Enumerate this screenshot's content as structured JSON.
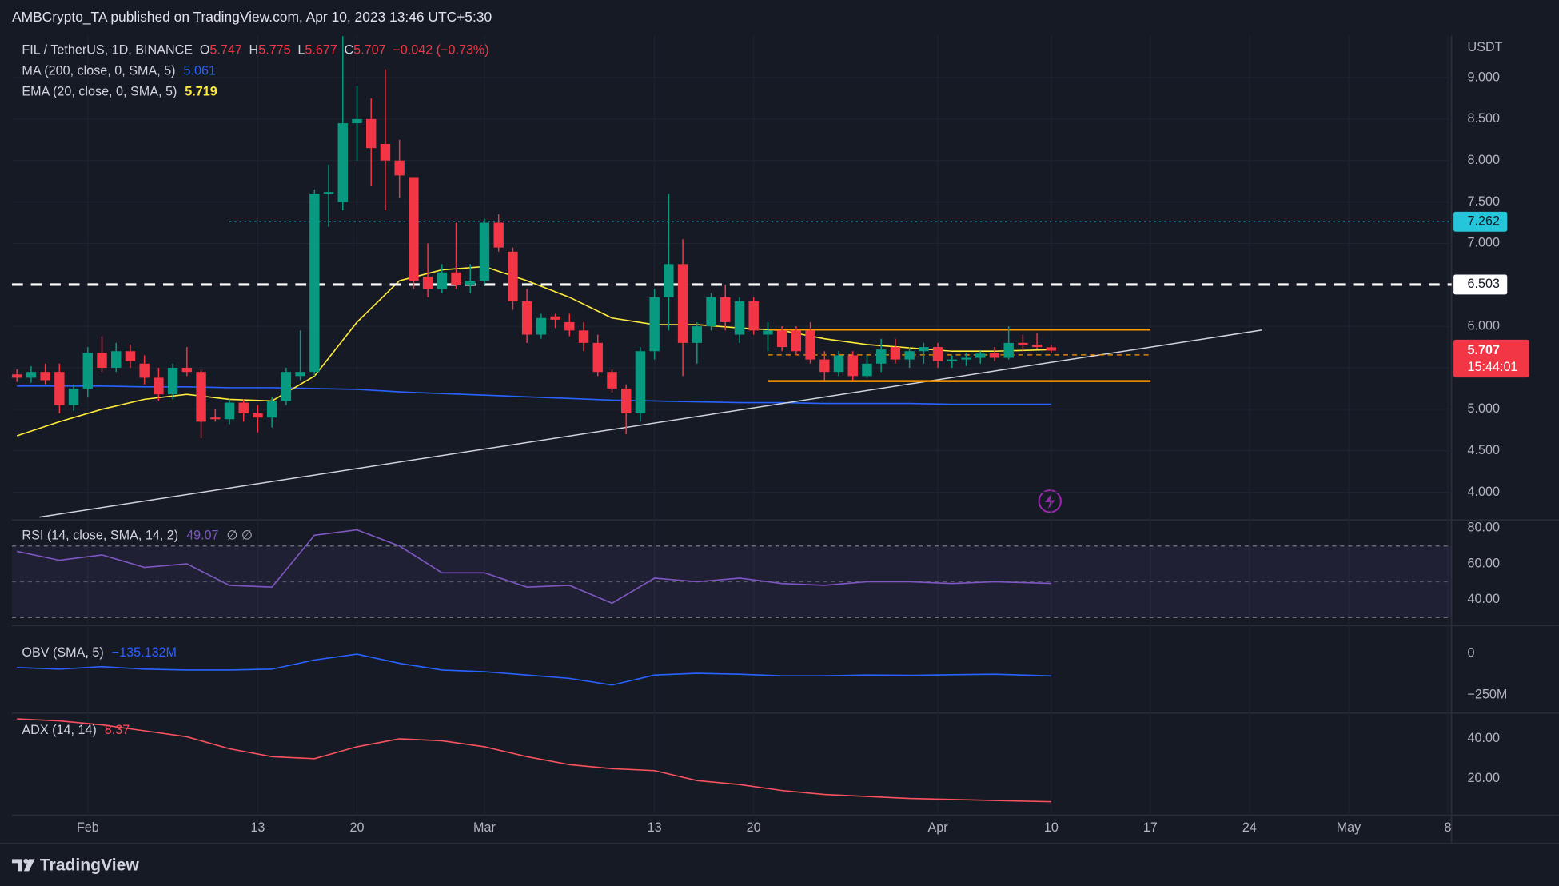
{
  "header": {
    "text": "AMBCrypto_TA published on TradingView.com, Apr 10, 2023 13:46 UTC+5:30"
  },
  "footer": {
    "logo": "TradingView"
  },
  "chart_data": [
    {
      "type": "candlestick",
      "title": "FIL / TetherUS, 1D, BINANCE",
      "y_unit": "USDT",
      "ohlc_labels": [
        "O",
        "H",
        "L",
        "C"
      ],
      "change": "−0.042 (−0.73%)",
      "countdown": "15:44:01",
      "up_color": "#089981",
      "down_color": "#f23645",
      "grid": true,
      "open": [
        5.42,
        5.38,
        5.45,
        5.45,
        5.05,
        5.25,
        5.68,
        5.5,
        5.7,
        5.55,
        5.38,
        5.18,
        5.5,
        5.45,
        4.9,
        4.88,
        5.08,
        4.95,
        4.9,
        5.1,
        5.4,
        5.45,
        7.6,
        7.5,
        8.45,
        8.5,
        8.2,
        8.0,
        7.8,
        6.6,
        6.45,
        6.65,
        6.5,
        6.55,
        7.25,
        6.9,
        6.3,
        5.9,
        6.12,
        6.05,
        5.95,
        5.8,
        5.45,
        5.25,
        4.95,
        5.7,
        6.35,
        6.75,
        5.8,
        6.0,
        6.35,
        5.9,
        6.3,
        5.9,
        5.95,
        5.95,
        5.95,
        5.6,
        5.45,
        5.65,
        5.4,
        5.55,
        5.75,
        5.6,
        5.7,
        5.75,
        5.58,
        5.6,
        5.62,
        5.68,
        5.62,
        5.8,
        5.78,
        5.747
      ],
      "high": [
        5.48,
        5.52,
        5.55,
        5.55,
        5.3,
        5.75,
        5.88,
        5.8,
        5.78,
        5.65,
        5.5,
        5.55,
        5.75,
        5.48,
        5.0,
        5.12,
        5.12,
        5.05,
        5.15,
        5.5,
        5.95,
        7.65,
        7.95,
        9.5,
        8.9,
        8.75,
        9.1,
        8.25,
        7.8,
        7.0,
        6.75,
        7.25,
        6.75,
        7.3,
        7.35,
        6.95,
        6.45,
        6.15,
        6.15,
        6.15,
        6.05,
        5.9,
        5.48,
        5.3,
        5.75,
        6.45,
        7.6,
        7.05,
        6.05,
        6.4,
        6.5,
        6.35,
        6.35,
        6.05,
        6.0,
        6.0,
        6.05,
        5.7,
        5.7,
        5.7,
        5.65,
        5.85,
        5.85,
        5.75,
        5.8,
        5.8,
        5.65,
        5.68,
        5.7,
        5.75,
        6.0,
        5.9,
        5.92,
        5.775
      ],
      "low": [
        5.33,
        5.32,
        5.3,
        4.95,
        4.98,
        5.15,
        5.45,
        5.45,
        5.5,
        5.3,
        5.1,
        5.12,
        5.4,
        4.65,
        4.85,
        4.82,
        4.85,
        4.72,
        4.78,
        5.05,
        5.35,
        5.4,
        7.2,
        7.4,
        8.0,
        7.7,
        7.4,
        7.55,
        6.45,
        6.35,
        6.4,
        6.45,
        6.4,
        6.5,
        6.9,
        6.2,
        5.8,
        5.85,
        5.98,
        5.88,
        5.7,
        5.4,
        5.2,
        4.7,
        4.85,
        5.6,
        5.95,
        5.4,
        5.55,
        5.95,
        5.95,
        5.8,
        5.9,
        5.7,
        5.7,
        5.65,
        5.55,
        5.35,
        5.4,
        5.35,
        5.38,
        5.45,
        5.55,
        5.5,
        5.55,
        5.5,
        5.5,
        5.52,
        5.55,
        5.58,
        5.6,
        5.7,
        5.72,
        5.677
      ],
      "close": [
        5.38,
        5.45,
        5.35,
        5.05,
        5.25,
        5.68,
        5.5,
        5.7,
        5.58,
        5.38,
        5.18,
        5.5,
        5.45,
        4.85,
        4.88,
        5.08,
        4.95,
        4.9,
        5.1,
        5.45,
        5.45,
        7.6,
        7.62,
        8.45,
        8.5,
        8.15,
        8.0,
        7.82,
        6.55,
        6.45,
        6.65,
        6.5,
        6.55,
        7.25,
        6.95,
        6.3,
        5.9,
        6.1,
        6.08,
        5.95,
        5.8,
        5.45,
        5.25,
        4.95,
        5.7,
        6.35,
        6.75,
        5.8,
        6.0,
        6.35,
        6.05,
        6.3,
        5.95,
        5.95,
        5.75,
        5.7,
        5.6,
        5.45,
        5.65,
        5.4,
        5.55,
        5.72,
        5.6,
        5.7,
        5.75,
        5.58,
        5.6,
        5.62,
        5.67,
        5.62,
        5.8,
        5.78,
        5.75,
        5.707
      ],
      "series": [
        {
          "name": "MA (200, close, 0, SMA, 5)",
          "color": "#2962ff",
          "x": [
            0,
            3,
            6,
            9,
            12,
            15,
            18,
            21,
            24,
            27,
            30,
            33,
            36,
            39,
            42,
            45,
            48,
            51,
            54,
            57,
            60,
            63,
            66,
            69,
            73
          ],
          "values": [
            5.28,
            5.28,
            5.28,
            5.27,
            5.27,
            5.26,
            5.26,
            5.25,
            5.24,
            5.21,
            5.19,
            5.17,
            5.15,
            5.13,
            5.11,
            5.1,
            5.09,
            5.08,
            5.08,
            5.07,
            5.07,
            5.07,
            5.06,
            5.06,
            5.061
          ]
        },
        {
          "name": "EMA (20, close, 0, SMA, 5)",
          "color": "#ffeb3b",
          "x": [
            0,
            3,
            6,
            9,
            12,
            15,
            18,
            21,
            24,
            27,
            30,
            33,
            36,
            39,
            42,
            45,
            48,
            51,
            54,
            57,
            60,
            63,
            66,
            69,
            73
          ],
          "values": [
            4.68,
            4.85,
            5.0,
            5.12,
            5.18,
            5.12,
            5.1,
            5.4,
            6.05,
            6.55,
            6.68,
            6.72,
            6.55,
            6.35,
            6.1,
            6.02,
            6.02,
            5.98,
            5.95,
            5.85,
            5.78,
            5.74,
            5.7,
            5.7,
            5.719
          ]
        }
      ],
      "resistance_line": {
        "value": 6.503,
        "color": "#ffffff"
      },
      "level_line": {
        "value": 7.262,
        "x_start": 15,
        "color": "#26c6da"
      },
      "range": {
        "x": [
          53,
          80
        ],
        "top": 5.96,
        "bottom": 5.34,
        "mid": 5.655,
        "color": "#ff9800"
      },
      "trendline": {
        "x": [
          1.6,
          87.9
        ],
        "values": [
          3.7,
          5.955
        ],
        "color": "#d1d4dc"
      },
      "xlim": [
        -0.35,
        101.26
      ],
      "xticks": [
        {
          "value": 5,
          "label": "Feb"
        },
        {
          "value": 17,
          "label": "13"
        },
        {
          "value": 24,
          "label": "20"
        },
        {
          "value": 33,
          "label": "Mar"
        },
        {
          "value": 45,
          "label": "13"
        },
        {
          "value": 52,
          "label": "20"
        },
        {
          "value": 65,
          "label": "Apr"
        },
        {
          "value": 73,
          "label": "10"
        },
        {
          "value": 80,
          "label": "17"
        },
        {
          "value": 87,
          "label": "24"
        },
        {
          "value": 94,
          "label": "May"
        },
        {
          "value": 101,
          "label": "8"
        }
      ],
      "ylim": [
        3.676,
        9.504
      ],
      "yticks": [
        {
          "value": 4,
          "label": "4.000"
        },
        {
          "value": 4.5,
          "label": "4.500"
        },
        {
          "value": 5,
          "label": "5.000"
        },
        {
          "value": 5.5,
          "label": "5.500"
        },
        {
          "value": 6,
          "label": "6.000"
        },
        {
          "value": 6.5,
          "label": "6.500"
        },
        {
          "value": 7,
          "label": "7.000"
        },
        {
          "value": 7.5,
          "label": "7.500"
        },
        {
          "value": 8,
          "label": "8.000"
        },
        {
          "value": 8.5,
          "label": "8.500"
        },
        {
          "value": 9,
          "label": "9.000"
        }
      ]
    },
    {
      "type": "line",
      "na_label": "∅ ∅",
      "band": [
        30,
        70
      ],
      "midline": 50,
      "series": [
        {
          "name": "RSI (14, close, SMA, 14, 2)",
          "color": "#7e57c2",
          "x": [
            0,
            3,
            6,
            9,
            12,
            15,
            18,
            21,
            24,
            27,
            30,
            33,
            36,
            39,
            42,
            45,
            48,
            51,
            54,
            57,
            60,
            63,
            66,
            69,
            73
          ],
          "values": [
            67,
            62,
            65,
            58,
            60,
            48,
            47,
            76,
            79,
            70,
            55,
            55,
            47,
            48,
            38,
            52,
            50,
            52,
            49,
            48,
            50,
            50,
            49,
            50,
            49.07
          ]
        }
      ],
      "ylim": [
        26.1,
        83.9
      ],
      "yticks": [
        {
          "value": 80,
          "label": "80.00"
        },
        {
          "value": 60,
          "label": "60.00"
        },
        {
          "value": 40,
          "label": "40.00"
        }
      ]
    },
    {
      "type": "line",
      "series": [
        {
          "name": "OBV (SMA, 5)",
          "color": "#2962ff",
          "x": [
            0,
            3,
            6,
            9,
            12,
            15,
            18,
            21,
            24,
            27,
            30,
            33,
            36,
            39,
            42,
            45,
            48,
            51,
            54,
            57,
            60,
            63,
            66,
            69,
            73
          ],
          "values": [
            -85000000,
            -95000000,
            -80000000,
            -95000000,
            -100000000,
            -100000000,
            -95000000,
            -40000000,
            -5000000,
            -60000000,
            -100000000,
            -110000000,
            -130000000,
            -150000000,
            -190000000,
            -130000000,
            -120000000,
            -125000000,
            -135000000,
            -135000000,
            -130000000,
            -132000000,
            -128000000,
            -125000000,
            -135132000
          ],
          "value_labels": [
            null,
            null,
            null,
            null,
            null,
            null,
            null,
            null,
            null,
            null,
            null,
            null,
            null,
            null,
            null,
            null,
            null,
            null,
            null,
            null,
            null,
            null,
            null,
            null,
            "−135.132M"
          ]
        }
      ],
      "ylim": [
        -351000000,
        160700000
      ],
      "yticks": [
        0,
        {
          "value": -250000000,
          "label": "−250M"
        }
      ]
    },
    {
      "type": "line",
      "series": [
        {
          "name": "ADX (14, 14)",
          "color": "#f7525f",
          "x": [
            0,
            3,
            6,
            9,
            12,
            15,
            18,
            21,
            24,
            27,
            30,
            33,
            36,
            39,
            42,
            45,
            48,
            51,
            54,
            57,
            60,
            63,
            66,
            69,
            73
          ],
          "values": [
            50,
            49,
            47,
            44,
            41,
            35,
            31,
            30,
            36,
            40,
            39,
            36,
            31,
            27,
            25,
            24,
            19,
            17,
            14,
            12,
            11,
            10,
            9.5,
            9,
            8.37
          ]
        }
      ],
      "ylim": [
        1.5,
        52.5
      ],
      "yticks": [
        {
          "value": 40,
          "label": "40.00"
        },
        {
          "value": 20,
          "label": "20.00"
        }
      ]
    }
  ]
}
